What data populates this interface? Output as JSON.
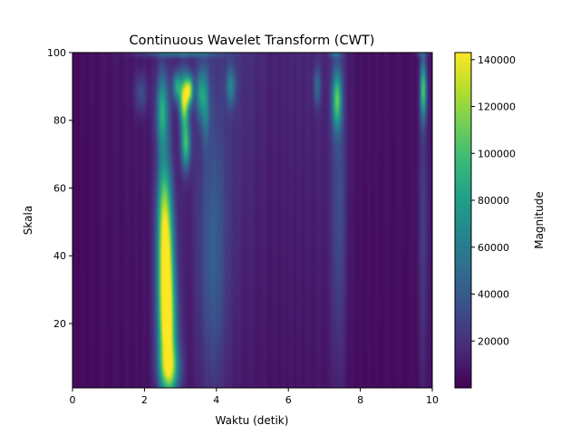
{
  "chart_data": {
    "type": "heatmap",
    "title": "Continuous Wavelet Transform (CWT)",
    "xlabel": "Waktu (detik)",
    "ylabel": "Skala",
    "xlim": [
      0,
      10
    ],
    "ylim": [
      1,
      100
    ],
    "x_ticks": [
      0,
      2,
      4,
      6,
      8,
      10
    ],
    "y_ticks": [
      20,
      40,
      60,
      80,
      100
    ],
    "colormap": "viridis",
    "colorbar": {
      "label": "Magnitude",
      "range": [
        0,
        143000
      ],
      "ticks": [
        20000,
        40000,
        60000,
        80000,
        100000,
        120000,
        140000
      ]
    },
    "hotspots": [
      {
        "t": 2.6,
        "s": 33,
        "sigma_t": 0.16,
        "sigma_s": 14,
        "value": 140000
      },
      {
        "t": 2.65,
        "s": 15,
        "sigma_t": 0.18,
        "sigma_s": 10,
        "value": 85000
      },
      {
        "t": 2.55,
        "s": 55,
        "sigma_t": 0.14,
        "sigma_s": 12,
        "value": 80000
      },
      {
        "t": 2.5,
        "s": 83,
        "sigma_t": 0.12,
        "sigma_s": 8,
        "value": 75000
      },
      {
        "t": 2.7,
        "s": 6,
        "sigma_t": 0.2,
        "sigma_s": 5,
        "value": 70000
      },
      {
        "t": 3.1,
        "s": 86,
        "sigma_t": 0.09,
        "sigma_s": 5,
        "value": 115000
      },
      {
        "t": 3.25,
        "s": 89,
        "sigma_t": 0.08,
        "sigma_s": 3,
        "value": 100000
      },
      {
        "t": 3.15,
        "s": 73,
        "sigma_t": 0.09,
        "sigma_s": 5,
        "value": 85000
      },
      {
        "t": 2.9,
        "s": 90,
        "sigma_t": 0.08,
        "sigma_s": 3,
        "value": 70000
      },
      {
        "t": 3.55,
        "s": 88,
        "sigma_t": 0.08,
        "sigma_s": 5,
        "value": 55000
      },
      {
        "t": 3.7,
        "s": 85,
        "sigma_t": 0.08,
        "sigma_s": 7,
        "value": 45000
      },
      {
        "t": 4.4,
        "s": 90,
        "sigma_t": 0.09,
        "sigma_s": 4,
        "value": 45000
      },
      {
        "t": 3.9,
        "s": 40,
        "sigma_t": 0.28,
        "sigma_s": 30,
        "value": 30000
      },
      {
        "t": 7.35,
        "s": 86,
        "sigma_t": 0.09,
        "sigma_s": 6,
        "value": 85000
      },
      {
        "t": 7.4,
        "s": 55,
        "sigma_t": 0.14,
        "sigma_s": 35,
        "value": 25000
      },
      {
        "t": 6.8,
        "s": 90,
        "sigma_t": 0.07,
        "sigma_s": 4,
        "value": 35000
      },
      {
        "t": 9.75,
        "s": 89,
        "sigma_t": 0.06,
        "sigma_s": 6,
        "value": 90000
      },
      {
        "t": 9.75,
        "s": 50,
        "sigma_t": 0.1,
        "sigma_s": 35,
        "value": 20000
      },
      {
        "t": 1.9,
        "s": 88,
        "sigma_t": 0.12,
        "sigma_s": 4,
        "value": 25000
      },
      {
        "t": 3.0,
        "s": 99.5,
        "sigma_t": 0.7,
        "sigma_s": 0.6,
        "value": 40000
      },
      {
        "t": 7.3,
        "s": 99.5,
        "sigma_t": 0.12,
        "sigma_s": 0.6,
        "value": 30000
      },
      {
        "t": 9.7,
        "s": 99.5,
        "sigma_t": 0.1,
        "sigma_s": 0.6,
        "value": 25000
      }
    ],
    "background": {
      "base": 8000,
      "t_profile": [
        [
          0.0,
          0
        ],
        [
          1.0,
          4000
        ],
        [
          2.0,
          6000
        ],
        [
          4.5,
          18000
        ],
        [
          5.5,
          10000
        ],
        [
          7.0,
          12000
        ],
        [
          8.0,
          3000
        ],
        [
          10.0,
          2000
        ]
      ]
    }
  }
}
